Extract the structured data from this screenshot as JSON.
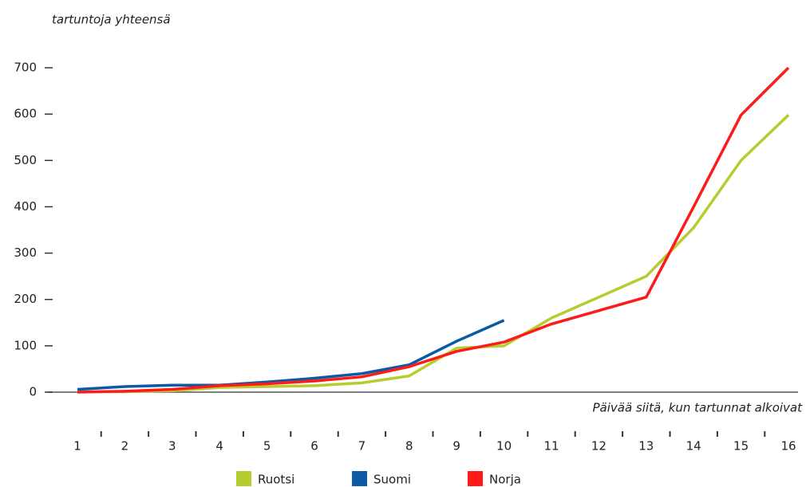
{
  "chart_data": {
    "type": "line",
    "y_axis_title": "tartuntoja yhteensä",
    "x_axis_title": "Päivää siitä, kun tartunnat alkoivat",
    "categories": [
      "1",
      "2",
      "3",
      "4",
      "5",
      "6",
      "7",
      "8",
      "9",
      "10",
      "11",
      "12",
      "13",
      "14",
      "15",
      "16"
    ],
    "series": [
      {
        "name": "Ruotsi",
        "color": "#b6cc30",
        "values": [
          1,
          1,
          3,
          10,
          12,
          14,
          20,
          35,
          95,
          100,
          160,
          205,
          250,
          355,
          500,
          598
        ]
      },
      {
        "name": "Suomi",
        "color": "#0b5aa6",
        "values": [
          6,
          12,
          15,
          15,
          22,
          30,
          40,
          59,
          110,
          155,
          null,
          null,
          null,
          null,
          null,
          null
        ]
      },
      {
        "name": "Norja",
        "color": "#ff1a1a",
        "values": [
          0,
          2,
          6,
          14,
          18,
          24,
          33,
          55,
          88,
          108,
          147,
          176,
          205,
          400,
          598,
          700
        ]
      }
    ],
    "ylim": [
      0,
      700
    ],
    "yticks": [
      0,
      100,
      200,
      300,
      400,
      500,
      600,
      700
    ]
  }
}
